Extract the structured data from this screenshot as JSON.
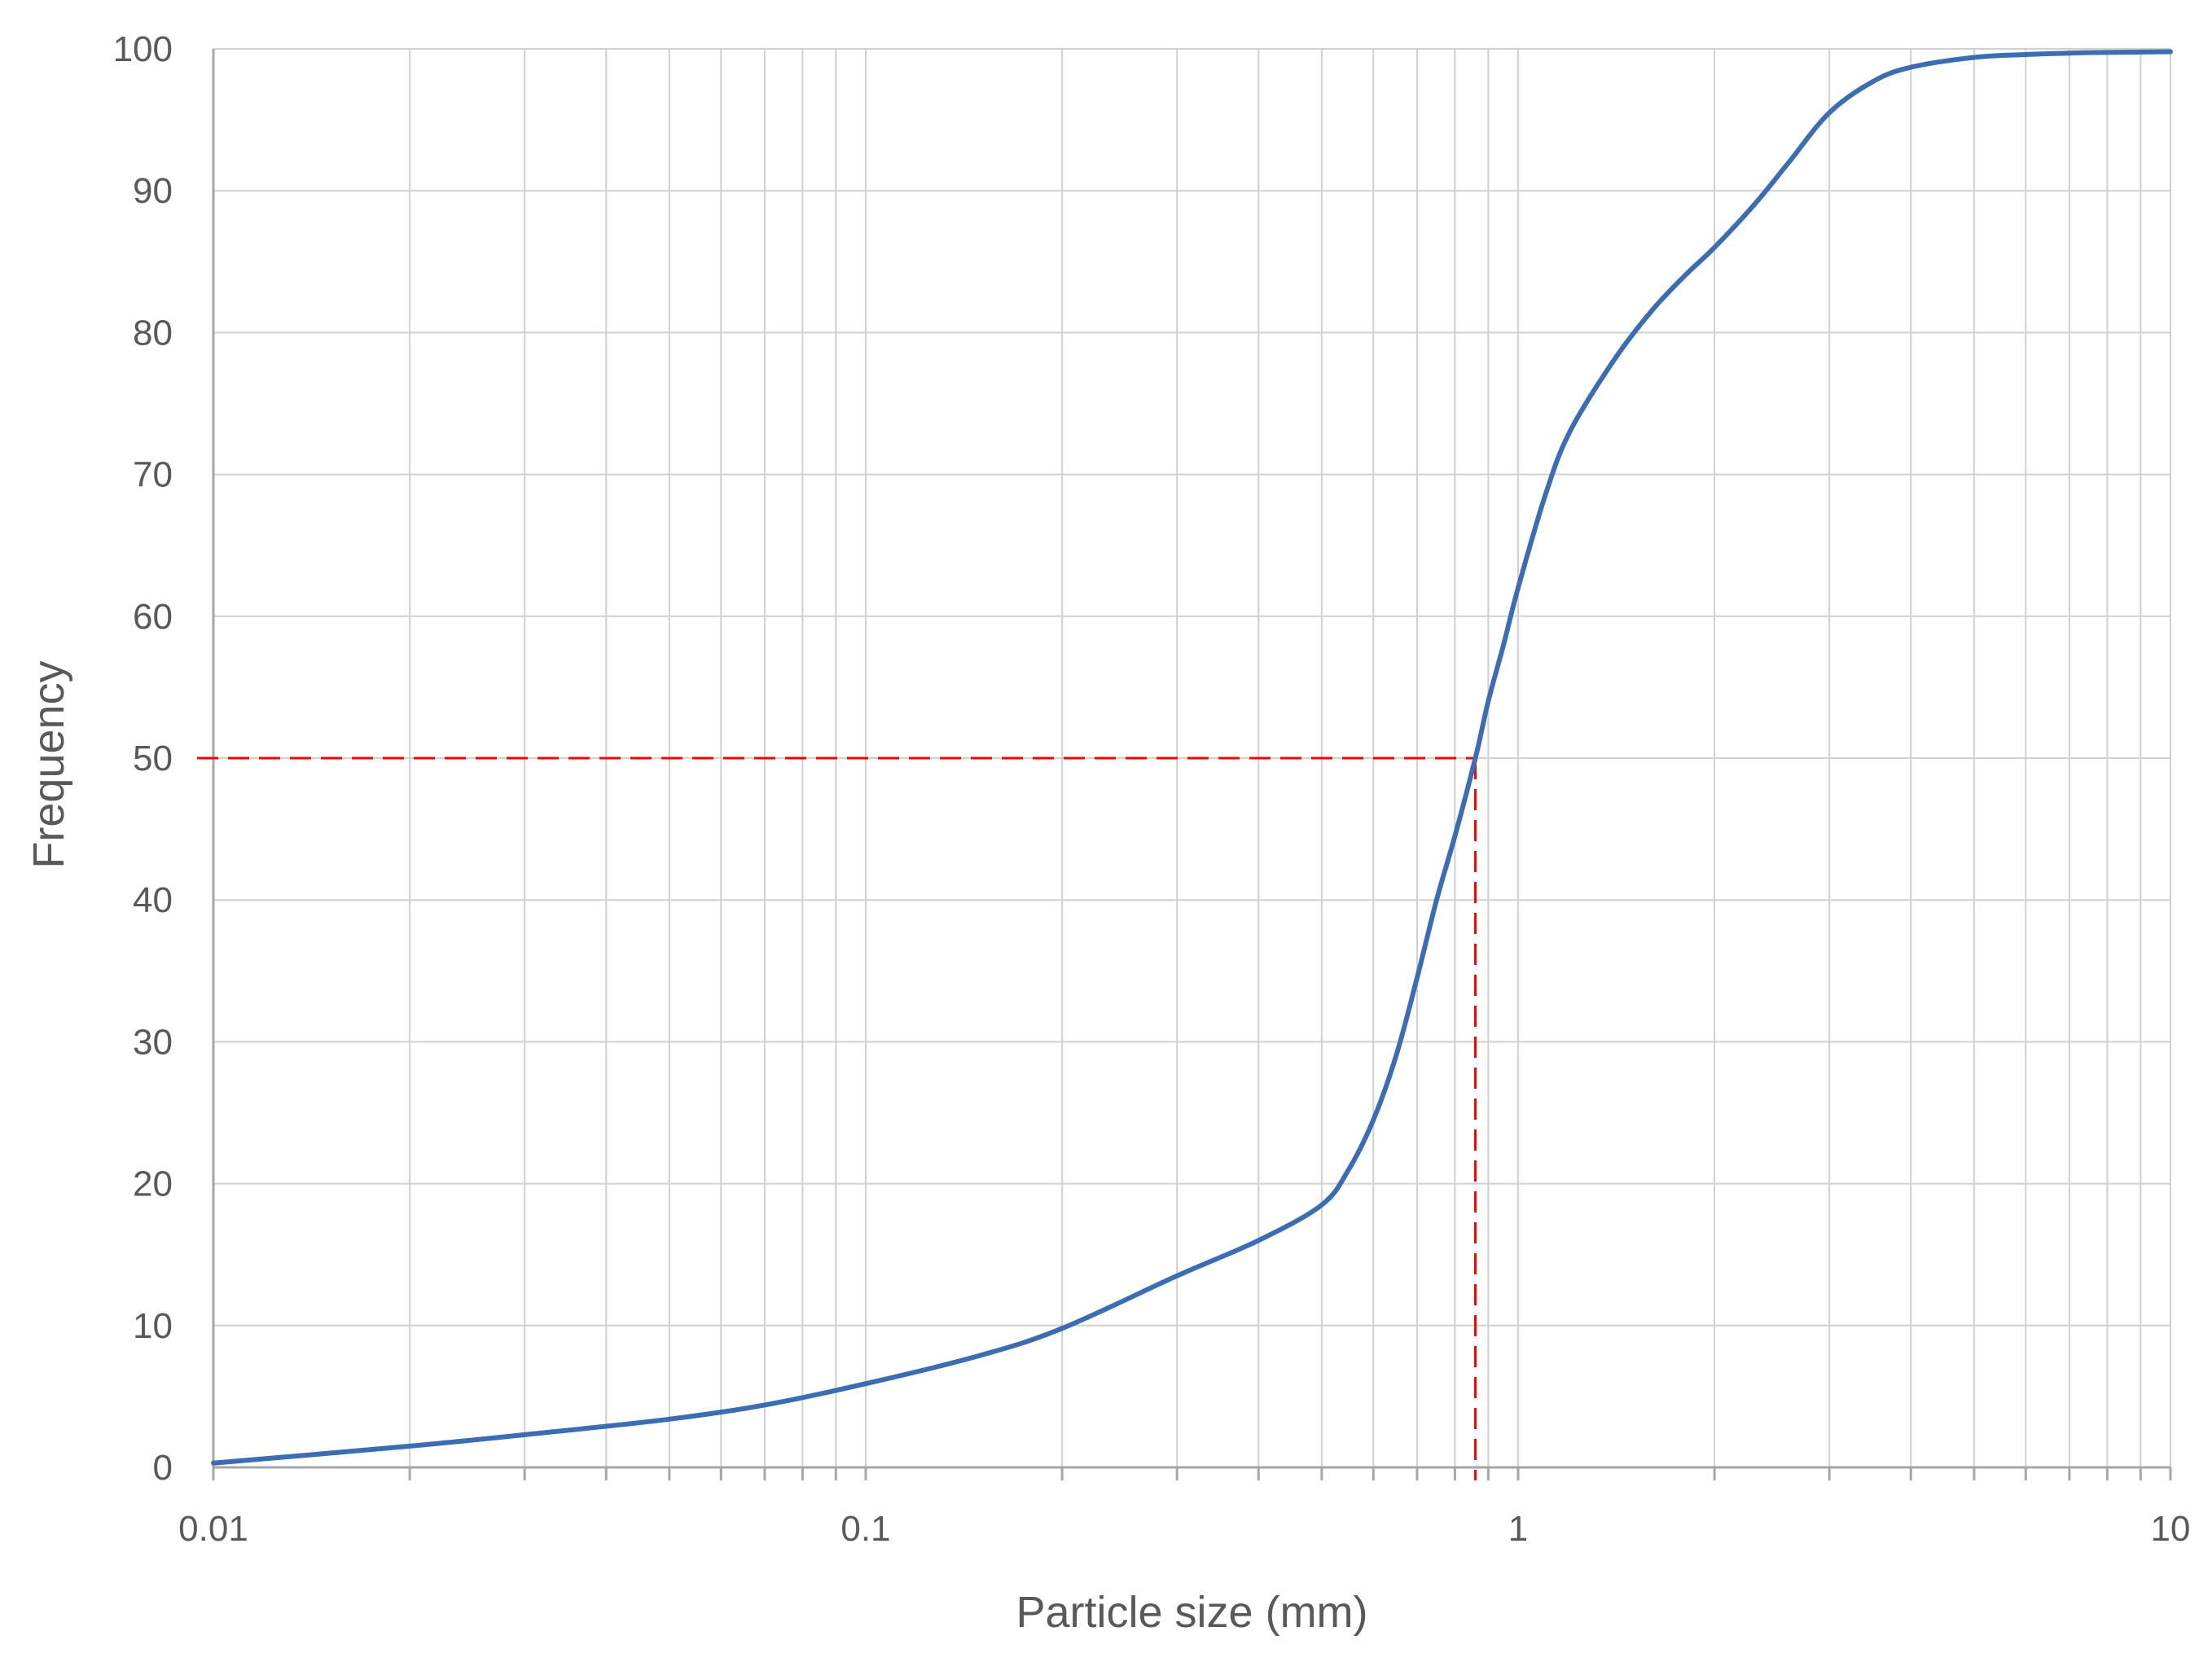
{
  "chart_data": {
    "type": "line",
    "xlabel": "Particle size (mm)",
    "ylabel": "Frequency",
    "x_scale": "log",
    "xlim": [
      0.01,
      10
    ],
    "ylim": [
      0,
      100
    ],
    "x_ticks": [
      0.01,
      0.1,
      1,
      10
    ],
    "x_tick_labels": [
      "0.01",
      "0.1",
      "1",
      "10"
    ],
    "y_ticks": [
      0,
      10,
      20,
      30,
      40,
      50,
      60,
      70,
      80,
      90,
      100
    ],
    "y_tick_labels": [
      "0",
      "10",
      "20",
      "30",
      "40",
      "50",
      "60",
      "70",
      "80",
      "90",
      "100"
    ],
    "grid": true,
    "legend": "none",
    "colors": {
      "series": "#3c6db3",
      "reference": "#ff0000"
    },
    "series": [
      {
        "x": [
          0.01,
          0.02,
          0.03,
          0.05,
          0.07,
          0.1,
          0.15,
          0.2,
          0.3,
          0.4,
          0.5,
          0.55,
          0.6,
          0.65,
          0.7,
          0.75,
          0.8,
          0.86,
          0.9,
          0.95,
          1.0,
          1.1,
          1.2,
          1.4,
          1.6,
          1.8,
          2.0,
          2.3,
          2.6,
          3.0,
          3.5,
          4.0,
          5.0,
          6.0,
          7.0,
          8.0,
          10.0
        ],
        "y": [
          0.3,
          1.5,
          2.3,
          3.4,
          4.4,
          5.9,
          7.9,
          9.8,
          13.5,
          16.0,
          18.5,
          21.0,
          24.5,
          29.0,
          34.5,
          40.0,
          44.5,
          50.0,
          54.0,
          58.0,
          62.0,
          68.5,
          73.0,
          78.0,
          81.5,
          84.0,
          86.0,
          89.0,
          92.0,
          95.5,
          97.7,
          98.7,
          99.4,
          99.6,
          99.7,
          99.75,
          99.8
        ]
      }
    ],
    "reference_point": {
      "x": 0.86,
      "y": 50
    }
  }
}
